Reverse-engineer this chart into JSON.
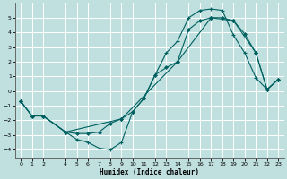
{
  "bg_color": "#c0e0e0",
  "grid_color": "#ffffff",
  "line_color": "#006060",
  "xlim": [
    -0.5,
    23.5
  ],
  "ylim": [
    -4.6,
    6.0
  ],
  "xticks": [
    0,
    1,
    2,
    4,
    5,
    6,
    7,
    8,
    9,
    10,
    11,
    12,
    13,
    14,
    15,
    16,
    17,
    18,
    19,
    20,
    21,
    22,
    23
  ],
  "yticks": [
    -4,
    -3,
    -2,
    -1,
    0,
    1,
    2,
    3,
    4,
    5
  ],
  "xlabel": "Humidex (Indice chaleur)",
  "line_plus_x": [
    0,
    1,
    2,
    4,
    5,
    6,
    7,
    8,
    9,
    10,
    11,
    12,
    13,
    14,
    15,
    16,
    17,
    18,
    19,
    20,
    21,
    22,
    23
  ],
  "line_plus_y": [
    -0.7,
    -1.7,
    -1.7,
    -2.8,
    -3.3,
    -3.5,
    -3.9,
    -4.0,
    -3.5,
    -1.4,
    -0.5,
    1.1,
    2.6,
    3.4,
    5.0,
    5.5,
    5.6,
    5.5,
    3.8,
    2.6,
    0.9,
    0.1,
    0.8
  ],
  "line_mid_x": [
    0,
    1,
    2,
    4,
    5,
    6,
    7,
    8,
    9,
    10,
    11,
    12,
    13,
    14,
    15,
    16,
    17,
    18,
    19,
    20,
    21,
    22,
    23
  ],
  "line_mid_y": [
    -0.7,
    -1.7,
    -1.7,
    -2.8,
    -2.9,
    -2.9,
    -2.8,
    -2.2,
    -1.9,
    -1.4,
    -0.5,
    1.1,
    1.6,
    2.0,
    4.2,
    4.8,
    5.0,
    5.0,
    4.8,
    3.9,
    2.6,
    0.1,
    0.8
  ],
  "line_straight_x": [
    0,
    1,
    2,
    4,
    9,
    14,
    17,
    19,
    21,
    22,
    23
  ],
  "line_straight_y": [
    -0.7,
    -1.7,
    -1.7,
    -2.8,
    -1.9,
    2.0,
    5.0,
    4.8,
    2.6,
    0.1,
    0.8
  ]
}
